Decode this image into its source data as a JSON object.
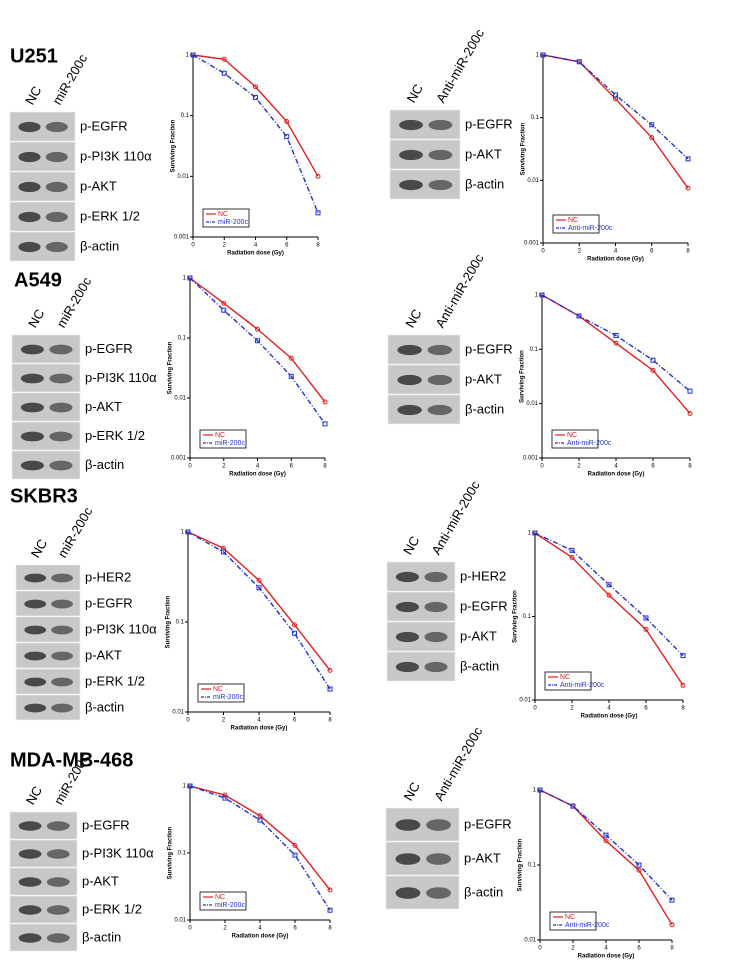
{
  "panels": [
    {
      "cell_line": "U251",
      "blots": [
        {
          "lanes": [
            "NC",
            "miR-200c"
          ],
          "bands": [
            "p-EGFR",
            "p-PI3K 110α",
            "p-AKT",
            "p-ERK 1/2",
            "β-actin"
          ]
        },
        {
          "lanes": [
            "NC",
            "Anti-miR-200c"
          ],
          "bands": [
            "p-EGFR",
            "p-AKT",
            "β-actin"
          ]
        }
      ]
    },
    {
      "cell_line": "A549",
      "blots": [
        {
          "lanes": [
            "NC",
            "miR-200c"
          ],
          "bands": [
            "p-EGFR",
            "p-PI3K 110α",
            "p-AKT",
            "p-ERK 1/2",
            "β-actin"
          ]
        },
        {
          "lanes": [
            "NC",
            "Anti-miR-200c"
          ],
          "bands": [
            "p-EGFR",
            "p-AKT",
            "β-actin"
          ]
        }
      ]
    },
    {
      "cell_line": "SKBR3",
      "blots": [
        {
          "lanes": [
            "NC",
            "miR-200c"
          ],
          "bands": [
            "p-HER2",
            "p-EGFR",
            "p-PI3K 110α",
            "p-AKT",
            "p-ERK 1/2",
            "β-actin"
          ]
        },
        {
          "lanes": [
            "NC",
            "Anti-miR-200c"
          ],
          "bands": [
            "p-HER2",
            "p-EGFR",
            "p-AKT",
            "β-actin"
          ]
        }
      ]
    },
    {
      "cell_line": "MDA-MB-468",
      "blots": [
        {
          "lanes": [
            "NC",
            "miR-200c"
          ],
          "bands": [
            "p-EGFR",
            "p-PI3K 110α",
            "p-AKT",
            "p-ERK 1/2",
            "β-actin"
          ]
        },
        {
          "lanes": [
            "NC",
            "Anti-miR-200c"
          ],
          "bands": [
            "p-EGFR",
            "p-AKT",
            "β-actin"
          ]
        }
      ]
    }
  ],
  "chart_data": [
    {
      "type": "line",
      "log_y": true,
      "x_label": "Radiation dose (Gy)",
      "y_label": "Surviving Fraction",
      "x": [
        0,
        2,
        4,
        6,
        8
      ],
      "xlim": [
        0,
        8
      ],
      "xticks": [
        0,
        2,
        4,
        6,
        8
      ],
      "ylim": [
        0.001,
        1
      ],
      "yticks": [
        0.001,
        0.01,
        0.1,
        1
      ],
      "legend": "lower left",
      "series": [
        {
          "name": "NC",
          "color": "#e02020",
          "values": [
            1,
            0.85,
            0.3,
            0.08,
            0.01
          ]
        },
        {
          "name": "miR-200c",
          "color": "#2030d0",
          "values": [
            1,
            0.5,
            0.2,
            0.045,
            0.0025
          ]
        }
      ]
    },
    {
      "type": "line",
      "log_y": true,
      "x_label": "Radiation dose (Gy)",
      "y_label": "Surviving Fraction",
      "x": [
        0,
        2,
        4,
        6,
        8
      ],
      "xlim": [
        0,
        8
      ],
      "xticks": [
        0,
        2,
        4,
        6,
        8
      ],
      "ylim": [
        0.001,
        1
      ],
      "yticks": [
        0.001,
        0.01,
        0.1,
        1
      ],
      "legend": "lower left",
      "series": [
        {
          "name": "NC",
          "color": "#e02020",
          "values": [
            1,
            0.78,
            0.2,
            0.048,
            0.0075
          ]
        },
        {
          "name": "Anti-miR-200c",
          "color": "#2030d0",
          "values": [
            1,
            0.78,
            0.23,
            0.077,
            0.022
          ]
        }
      ]
    },
    {
      "type": "line",
      "log_y": true,
      "x_label": "Radiation dose (Gy)",
      "y_label": "Surviving Fraction",
      "x": [
        0,
        2,
        4,
        6,
        8
      ],
      "xlim": [
        0,
        8
      ],
      "xticks": [
        0,
        2,
        4,
        6,
        8
      ],
      "ylim": [
        0.001,
        1
      ],
      "yticks": [
        0.001,
        0.01,
        0.1,
        1
      ],
      "legend": "lower left",
      "series": [
        {
          "name": "NC",
          "color": "#e02020",
          "values": [
            1,
            0.38,
            0.14,
            0.046,
            0.0086
          ]
        },
        {
          "name": "miR-200c",
          "color": "#2030d0",
          "values": [
            1,
            0.29,
            0.09,
            0.023,
            0.0037
          ]
        }
      ]
    },
    {
      "type": "line",
      "log_y": true,
      "x_label": "Radiation dose (Gy)",
      "y_label": "Surviving Fraction",
      "x": [
        0,
        2,
        4,
        6,
        8
      ],
      "xlim": [
        0,
        8
      ],
      "xticks": [
        0,
        2,
        4,
        6,
        8
      ],
      "ylim": [
        0.001,
        1
      ],
      "yticks": [
        0.001,
        0.01,
        0.1,
        1
      ],
      "legend": "lower left",
      "series": [
        {
          "name": "NC",
          "color": "#e02020",
          "values": [
            1,
            0.41,
            0.13,
            0.041,
            0.0066
          ]
        },
        {
          "name": "Anti-miR-200c",
          "color": "#2030d0",
          "values": [
            1,
            0.41,
            0.18,
            0.063,
            0.017
          ]
        }
      ]
    },
    {
      "type": "line",
      "log_y": true,
      "x_label": "Radiation dose (Gy)",
      "y_label": "Surviving Fraction",
      "x": [
        0,
        2,
        4,
        6,
        8
      ],
      "xlim": [
        0,
        8
      ],
      "xticks": [
        0,
        2,
        4,
        6,
        8
      ],
      "ylim": [
        0.01,
        1
      ],
      "yticks": [
        0.01,
        0.1,
        1
      ],
      "legend": "lower left",
      "series": [
        {
          "name": "NC",
          "color": "#e02020",
          "values": [
            1,
            0.66,
            0.29,
            0.093,
            0.029
          ]
        },
        {
          "name": "miR-200c",
          "color": "#2030d0",
          "values": [
            1,
            0.6,
            0.24,
            0.075,
            0.018
          ]
        }
      ]
    },
    {
      "type": "line",
      "log_y": true,
      "x_label": "Radiation dose (Gy)",
      "y_label": "Surviving Fraction",
      "x": [
        0,
        2,
        4,
        6,
        8
      ],
      "xlim": [
        0,
        8
      ],
      "xticks": [
        0,
        2,
        4,
        6,
        8
      ],
      "ylim": [
        0.01,
        1
      ],
      "yticks": [
        0.01,
        0.1,
        1
      ],
      "legend": "lower left",
      "series": [
        {
          "name": "NC",
          "color": "#e02020",
          "values": [
            1,
            0.51,
            0.18,
            0.07,
            0.015
          ]
        },
        {
          "name": "Anti-miR-200c",
          "color": "#2030d0",
          "values": [
            1,
            0.62,
            0.24,
            0.096,
            0.034
          ]
        }
      ]
    },
    {
      "type": "line",
      "log_y": true,
      "x_label": "Radiation dose (Gy)",
      "y_label": "Surviving Fraction",
      "x": [
        0,
        2,
        4,
        6,
        8
      ],
      "xlim": [
        0,
        8
      ],
      "xticks": [
        0,
        2,
        4,
        6,
        8
      ],
      "ylim": [
        0.01,
        1
      ],
      "yticks": [
        0.01,
        0.1,
        1
      ],
      "legend": "lower left",
      "series": [
        {
          "name": "NC",
          "color": "#e02020",
          "values": [
            1,
            0.73,
            0.36,
            0.13,
            0.028
          ]
        },
        {
          "name": "miR-200c",
          "color": "#2030d0",
          "values": [
            1,
            0.66,
            0.31,
            0.093,
            0.014
          ]
        }
      ]
    },
    {
      "type": "line",
      "log_y": true,
      "x_label": "Radiation dose (Gy)",
      "y_label": "Surviving Fraction",
      "x": [
        0,
        2,
        4,
        6,
        8
      ],
      "xlim": [
        0,
        8
      ],
      "xticks": [
        0,
        2,
        4,
        6,
        8
      ],
      "ylim": [
        0.01,
        1
      ],
      "yticks": [
        0.01,
        0.1,
        1
      ],
      "legend": "lower left",
      "series": [
        {
          "name": "NC",
          "color": "#e02020",
          "values": [
            1,
            0.61,
            0.21,
            0.085,
            0.016
          ]
        },
        {
          "name": "Anti-miR-200c",
          "color": "#2030d0",
          "values": [
            1,
            0.61,
            0.25,
            0.1,
            0.034
          ]
        }
      ]
    }
  ]
}
